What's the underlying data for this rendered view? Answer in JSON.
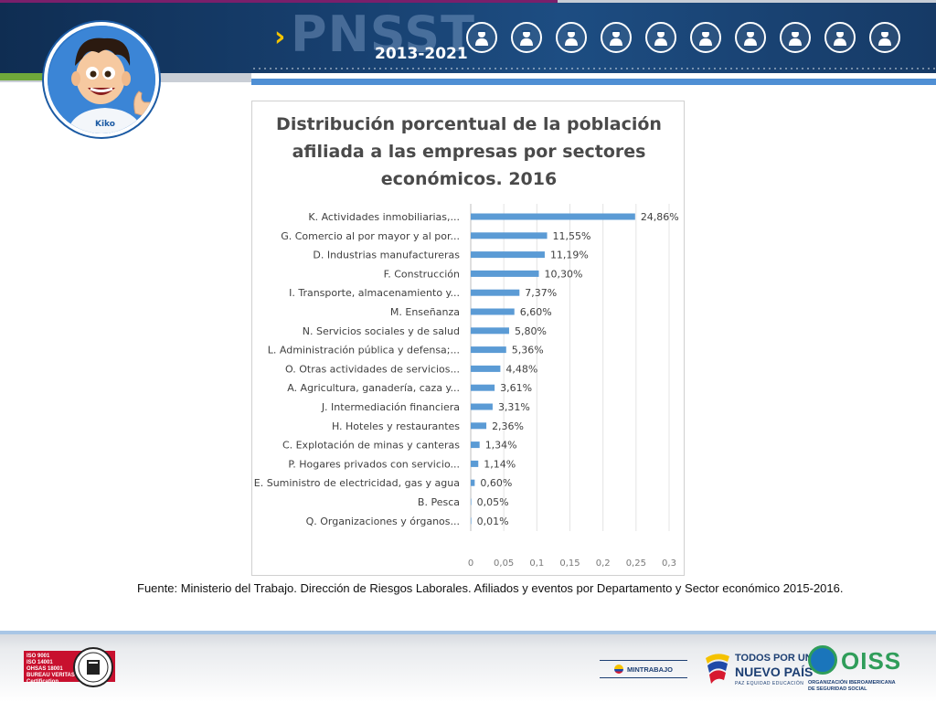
{
  "header": {
    "brand": "PNSST",
    "years": "2013-2021",
    "chevron": "›",
    "sector_icons": [
      "construction-worker-icon",
      "firefighter-icon",
      "driver-icon",
      "miner-icon",
      "nurse-icon",
      "worker-helmet-icon",
      "factory-worker-icon",
      "doctor-icon",
      "engineer-icon",
      "farmer-icon"
    ]
  },
  "mascot": {
    "shirt_text": "Kiko"
  },
  "chart_data": {
    "type": "bar",
    "orientation": "horizontal",
    "title_lines": [
      "Distribución porcentual de la población",
      "afiliada a las empresas por sectores",
      "económicos. 2016"
    ],
    "categories": [
      "K. Actividades inmobiliarias,...",
      "G. Comercio al por mayor y al por...",
      "D. Industrias manufactureras",
      "F. Construcción",
      "I. Transporte, almacenamiento y...",
      "M. Enseñanza",
      "N. Servicios sociales y de salud",
      "L. Administración pública y defensa;...",
      "O. Otras actividades de servicios...",
      "A. Agricultura, ganadería, caza y...",
      "J. Intermediación financiera",
      "H. Hoteles y restaurantes",
      "C. Explotación de minas y canteras",
      "P. Hogares privados con servicio...",
      "E. Suministro de electricidad, gas y agua",
      "B. Pesca",
      "Q. Organizaciones y órganos..."
    ],
    "values": [
      0.2486,
      0.1155,
      0.1119,
      0.103,
      0.0737,
      0.066,
      0.058,
      0.0536,
      0.0448,
      0.0361,
      0.0331,
      0.0236,
      0.0134,
      0.0114,
      0.006,
      0.0005,
      0.0001
    ],
    "data_labels": [
      "24,86%",
      "11,55%",
      "11,19%",
      "10,30%",
      "7,37%",
      "6,60%",
      "5,80%",
      "5,36%",
      "4,48%",
      "3,61%",
      "3,31%",
      "2,36%",
      "1,34%",
      "1,14%",
      "0,60%",
      "0,05%",
      "0,01%"
    ],
    "x_ticks": [
      "0",
      "0,05",
      "0,1",
      "0,15",
      "0,2",
      "0,25",
      "0,3"
    ],
    "xlim": [
      0,
      0.3
    ],
    "grid": "vertical",
    "bar_color": "#5b9bd5"
  },
  "source_note": "Fuente: Ministerio del Trabajo. Dirección de Riesgos Laborales. Afiliados y eventos por Departamento y Sector económico 2015-2016.",
  "footer": {
    "bv_lines": [
      "ISO 9001",
      "ISO 14001",
      "OHSAS 18001",
      "BUREAU VERITAS",
      "Certification"
    ],
    "mintrabajo": "MINTRABAJO",
    "todos_l1": "TODOS POR UN",
    "todos_l2": "NUEVO PAÍS",
    "todos_l3": "PAZ  EQUIDAD  EDUCACIÓN",
    "oiss": "OISS",
    "oiss_sub1": "ORGANIZACIÓN IBEROAMERICANA",
    "oiss_sub2": "DE SEGURIDAD SOCIAL"
  }
}
